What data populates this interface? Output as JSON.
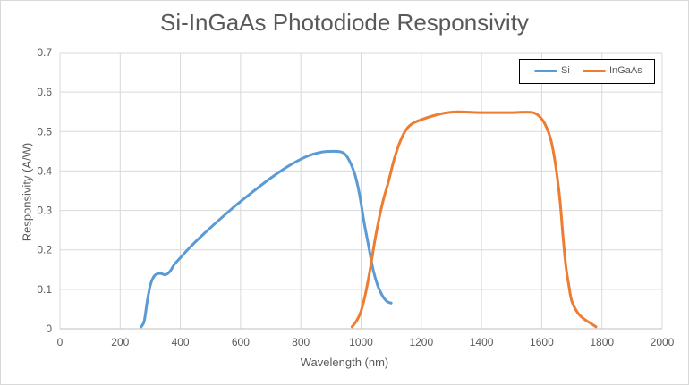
{
  "chart_data": {
    "type": "line",
    "title": "Si-InGaAs Photodiode Responsivity",
    "xlabel": "Wavelength (nm)",
    "ylabel": "Responsivity (A/W)",
    "xlim": [
      0,
      2000
    ],
    "ylim": [
      0,
      0.7
    ],
    "xticks": [
      0,
      200,
      400,
      600,
      800,
      1000,
      1200,
      1400,
      1600,
      1800,
      2000
    ],
    "yticks": [
      0,
      0.1,
      0.2,
      0.3,
      0.4,
      0.5,
      0.6,
      0.7
    ],
    "ytick_labels": [
      "0",
      "0.1",
      "0.2",
      "0.3",
      "0.4",
      "0.5",
      "0.6",
      "0.7"
    ],
    "grid": true,
    "legend_position": "top-right",
    "series": [
      {
        "name": "Si",
        "color": "#5b9bd5",
        "x": [
          270,
          280,
          290,
          300,
          310,
          320,
          335,
          350,
          365,
          380,
          400,
          430,
          470,
          520,
          580,
          640,
          700,
          760,
          820,
          870,
          910,
          935,
          950,
          965,
          980,
          995,
          1010,
          1025,
          1040,
          1055,
          1070,
          1085,
          1100
        ],
        "y": [
          0.005,
          0.02,
          0.07,
          0.11,
          0.13,
          0.138,
          0.14,
          0.137,
          0.145,
          0.163,
          0.18,
          0.205,
          0.235,
          0.27,
          0.31,
          0.347,
          0.382,
          0.413,
          0.437,
          0.448,
          0.45,
          0.448,
          0.44,
          0.42,
          0.39,
          0.34,
          0.27,
          0.21,
          0.15,
          0.11,
          0.085,
          0.07,
          0.065
        ]
      },
      {
        "name": "InGaAs",
        "color": "#ed7d31",
        "x": [
          970,
          985,
          1000,
          1015,
          1030,
          1045,
          1060,
          1075,
          1090,
          1110,
          1130,
          1150,
          1170,
          1200,
          1240,
          1280,
          1320,
          1360,
          1400,
          1450,
          1500,
          1540,
          1570,
          1590,
          1610,
          1630,
          1645,
          1660,
          1670,
          1680,
          1690,
          1700,
          1720,
          1740,
          1760,
          1780
        ],
        "y": [
          0.005,
          0.02,
          0.045,
          0.09,
          0.15,
          0.22,
          0.28,
          0.33,
          0.37,
          0.43,
          0.475,
          0.505,
          0.52,
          0.53,
          0.54,
          0.547,
          0.55,
          0.549,
          0.548,
          0.548,
          0.548,
          0.549,
          0.548,
          0.54,
          0.52,
          0.48,
          0.42,
          0.33,
          0.24,
          0.16,
          0.11,
          0.07,
          0.04,
          0.025,
          0.015,
          0.005
        ]
      }
    ]
  }
}
